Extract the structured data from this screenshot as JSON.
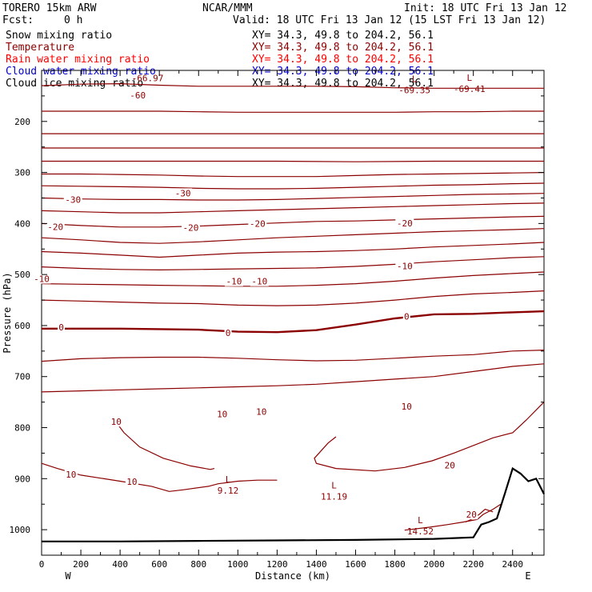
{
  "header": {
    "model": "TORERO  15km ARW",
    "center": "NCAR/MMM",
    "init": "Init: 18 UTC Fri 13 Jan 12",
    "fcst_label": "Fcst:",
    "fcst_value": "0 h",
    "valid": "Valid: 18 UTC Fri 13 Jan 12 (15 LST Fri 13 Jan 12)"
  },
  "legend": [
    {
      "name": "Snow mixing ratio",
      "xy": "XY=  34.3, 49.8 to 204.2, 56.1",
      "color": "#000000"
    },
    {
      "name": "Temperature",
      "xy": "XY=  34.3, 49.8 to 204.2, 56.1",
      "color": "#8b0000"
    },
    {
      "name": "Rain water mixing ratio",
      "xy": "XY=  34.3, 49.8 to 204.2, 56.1",
      "color": "#ff0000"
    },
    {
      "name": "Cloud water mixing ratio",
      "xy": "XY=  34.3, 49.8 to 204.2, 56.1",
      "color": "#0000cd"
    },
    {
      "name": "Cloud ice mixing ratio",
      "xy": "XY=  34.3, 49.8 to 204.2, 56.1",
      "color": "#000000"
    }
  ],
  "chart_data": {
    "type": "line",
    "title": "",
    "xlabel": "Distance (km)",
    "ylabel": "Pressure (hPa)",
    "xlim": [
      0,
      2560
    ],
    "ylim": [
      1050,
      100
    ],
    "y_scale": "linear, inverted",
    "x_ticks": [
      0,
      100,
      200,
      300,
      400,
      500,
      600,
      700,
      800,
      900,
      1000,
      1100,
      1200,
      1300,
      1400,
      1500,
      1600,
      1700,
      1800,
      1900,
      2000,
      2100,
      2200,
      2300,
      2400,
      2500
    ],
    "x_tick_labels": [
      "0",
      "200",
      "400",
      "600",
      "800",
      "1000",
      "1200",
      "1400",
      "1600",
      "1800",
      "2000",
      "2200",
      "2400"
    ],
    "y_ticks": [
      200,
      300,
      400,
      500,
      600,
      700,
      800,
      900,
      1000
    ],
    "y_minor_ticks": [
      150,
      250,
      350,
      450,
      550,
      650,
      750,
      850,
      950
    ],
    "x_end_labels": {
      "left": "W",
      "right": "E"
    },
    "isotherm_labels": [
      "-60",
      "-30",
      "-30",
      "-20",
      "-20",
      "-20",
      "-20",
      "-10",
      "-10",
      "-10",
      "-10",
      "0",
      "0",
      "0",
      "10",
      "10",
      "10",
      "10",
      "10",
      "10",
      "20",
      "20"
    ],
    "extrema": [
      {
        "symbol": "L",
        "value": "-69.35"
      },
      {
        "symbol": "L",
        "value": "-69.41"
      },
      {
        "symbol": "",
        "value": "-66.97"
      },
      {
        "symbol": "L",
        "value": "9.12"
      },
      {
        "symbol": "L",
        "value": "11.19"
      },
      {
        "symbol": "L",
        "value": "14.52"
      }
    ],
    "series": [
      {
        "name": "Temperature",
        "color": "#8b0000"
      }
    ],
    "lines": [
      {
        "x": [
          0,
          200,
          400,
          600,
          800,
          1000,
          1200,
          1400,
          1600,
          1800,
          2000,
          2200,
          2400,
          2560
        ],
        "y": [
          130,
          127,
          126,
          129,
          131,
          131,
          131,
          131,
          132,
          134,
          135,
          135,
          135,
          135
        ]
      },
      {
        "x": [
          0,
          200,
          400,
          600,
          800,
          1000,
          1200,
          1400,
          1600,
          1800,
          2000,
          2200,
          2400,
          2560
        ],
        "y": [
          180,
          180,
          180,
          180,
          181,
          182,
          182,
          182,
          182,
          182,
          181,
          181,
          180,
          180
        ]
      },
      {
        "x": [
          0,
          400,
          800,
          1200,
          1600,
          2000,
          2400,
          2560
        ],
        "y": [
          224,
          224,
          224,
          224,
          224,
          224,
          224,
          224
        ]
      },
      {
        "x": [
          0,
          400,
          800,
          1200,
          1600,
          2000,
          2400,
          2560
        ],
        "y": [
          252,
          252,
          252,
          252,
          252,
          252,
          252,
          252
        ]
      },
      {
        "x": [
          0,
          400,
          800,
          1200,
          1600,
          2000,
          2400,
          2560
        ],
        "y": [
          278,
          278,
          278,
          278,
          279,
          278,
          278,
          278
        ]
      },
      {
        "x": [
          0,
          200,
          400,
          600,
          800,
          1000,
          1200,
          1400,
          1600,
          1800,
          2000,
          2200,
          2400,
          2560
        ],
        "y": [
          303,
          303,
          304,
          305,
          307,
          308,
          308,
          308,
          306,
          304,
          303,
          302,
          301,
          300
        ]
      },
      {
        "x": [
          0,
          200,
          400,
          600,
          800,
          1000,
          1200,
          1400,
          1600,
          1800,
          2000,
          2200,
          2400,
          2560
        ],
        "y": [
          326,
          327,
          328,
          329,
          331,
          332,
          332,
          331,
          329,
          327,
          325,
          324,
          322,
          321
        ]
      },
      {
        "x": [
          0,
          200,
          400,
          600,
          800,
          1000,
          1200,
          1400,
          1600,
          1800,
          2000,
          2200,
          2400,
          2560
        ],
        "y": [
          350,
          352,
          353,
          353,
          354,
          354,
          353,
          351,
          349,
          347,
          345,
          343,
          342,
          341
        ]
      },
      {
        "x": [
          0,
          200,
          400,
          600,
          800,
          1000,
          1200,
          1400,
          1600,
          1800,
          2000,
          2200,
          2400,
          2560
        ],
        "y": [
          375,
          377,
          379,
          379,
          377,
          375,
          373,
          371,
          369,
          367,
          365,
          363,
          361,
          360
        ]
      },
      {
        "x": [
          0,
          200,
          400,
          600,
          800,
          1000,
          1200,
          1400,
          1600,
          1800,
          2000,
          2200,
          2400,
          2560
        ],
        "y": [
          400,
          404,
          407,
          407,
          405,
          402,
          399,
          396,
          395,
          393,
          391,
          389,
          387,
          386
        ]
      },
      {
        "x": [
          0,
          200,
          400,
          600,
          800,
          1000,
          1200,
          1400,
          1600,
          1800,
          2000,
          2200,
          2400,
          2560
        ],
        "y": [
          428,
          432,
          437,
          439,
          436,
          432,
          428,
          425,
          422,
          419,
          416,
          414,
          412,
          410
        ]
      },
      {
        "x": [
          0,
          200,
          400,
          600,
          800,
          1000,
          1200,
          1400,
          1600,
          1800,
          2000,
          2200,
          2400,
          2560
        ],
        "y": [
          455,
          458,
          462,
          466,
          462,
          458,
          456,
          455,
          453,
          450,
          446,
          443,
          440,
          437
        ]
      },
      {
        "x": [
          0,
          200,
          400,
          600,
          800,
          1000,
          1200,
          1400,
          1600,
          1800,
          2000,
          2200,
          2400,
          2560
        ],
        "y": [
          485,
          488,
          490,
          491,
          490,
          489,
          488,
          487,
          484,
          480,
          475,
          471,
          467,
          465
        ]
      },
      {
        "x": [
          0,
          200,
          400,
          600,
          800,
          1000,
          1200,
          1400,
          1600,
          1800,
          2000,
          2200,
          2400,
          2560
        ],
        "y": [
          518,
          519,
          520,
          521,
          522,
          523,
          523,
          521,
          518,
          513,
          507,
          502,
          498,
          495
        ]
      },
      {
        "x": [
          0,
          200,
          400,
          600,
          800,
          1000,
          1200,
          1400,
          1600,
          1800,
          2000,
          2200,
          2400,
          2560
        ],
        "y": [
          550,
          552,
          554,
          556,
          557,
          560,
          561,
          560,
          556,
          550,
          543,
          538,
          535,
          532
        ]
      },
      {
        "x": [
          0,
          200,
          400,
          600,
          800,
          1000,
          1200,
          1400,
          1600,
          1800,
          2000,
          2200,
          2400,
          2560
        ],
        "y": [
          606,
          606,
          606,
          607,
          608,
          612,
          613,
          609,
          598,
          586,
          578,
          577,
          574,
          572
        ]
      },
      {
        "x": [
          0,
          200,
          400,
          600,
          800,
          1000,
          1200,
          1400,
          1600,
          1800,
          2000,
          2200,
          2400,
          2560
        ],
        "y": [
          670,
          665,
          663,
          662,
          662,
          664,
          667,
          669,
          668,
          664,
          660,
          657,
          650,
          648
        ]
      },
      {
        "x": [
          0,
          200,
          400,
          600,
          800,
          1000,
          1200,
          1400,
          1600,
          1800,
          2000,
          2200,
          2400,
          2560
        ],
        "y": [
          730,
          728,
          726,
          724,
          722,
          720,
          718,
          715,
          710,
          705,
          700,
          690,
          680,
          675
        ]
      },
      {
        "x": [
          370,
          385,
          420,
          500,
          620,
          760,
          860,
          880
        ],
        "y": [
          797,
          792,
          810,
          838,
          860,
          875,
          882,
          880
        ]
      },
      {
        "x": [
          0,
          80,
          200,
          400,
          560,
          650,
          720,
          850,
          900,
          1000,
          1100,
          1200
        ],
        "y": [
          870,
          880,
          893,
          905,
          915,
          925,
          922,
          915,
          910,
          905,
          903,
          903
        ]
      },
      {
        "x": [
          1500,
          1460,
          1390,
          1400,
          1500,
          1700,
          1850,
          1990,
          2100,
          2300,
          2400,
          2470,
          2560
        ],
        "y": [
          818,
          830,
          860,
          870,
          880,
          885,
          878,
          865,
          850,
          820,
          810,
          785,
          750
        ]
      },
      {
        "x": [
          1850,
          1980,
          2070,
          2150,
          2220,
          2250,
          2300,
          2340
        ],
        "y": [
          1001,
          995,
          990,
          985,
          980,
          970,
          960,
          950
        ]
      },
      {
        "x": [
          2160,
          2190,
          2230,
          2260,
          2300
        ],
        "y": [
          985,
          980,
          970,
          960,
          965
        ]
      }
    ],
    "ground": {
      "x": [
        0,
        400,
        800,
        1200,
        1600,
        2000,
        2200,
        2240,
        2280,
        2320,
        2360,
        2400,
        2440,
        2480,
        2520,
        2560
      ],
      "y": [
        1023,
        1023,
        1022,
        1021,
        1020,
        1018,
        1015,
        990,
        985,
        978,
        930,
        880,
        890,
        905,
        900,
        930
      ]
    },
    "zero_line": {
      "x": [
        0,
        200,
        400,
        600,
        800,
        1000,
        1200,
        1400,
        1600,
        1800,
        2000,
        2200,
        2400,
        2560
      ],
      "y": [
        606,
        606,
        606,
        607,
        608,
        612,
        613,
        609,
        598,
        586,
        578,
        577,
        574,
        572
      ]
    }
  }
}
